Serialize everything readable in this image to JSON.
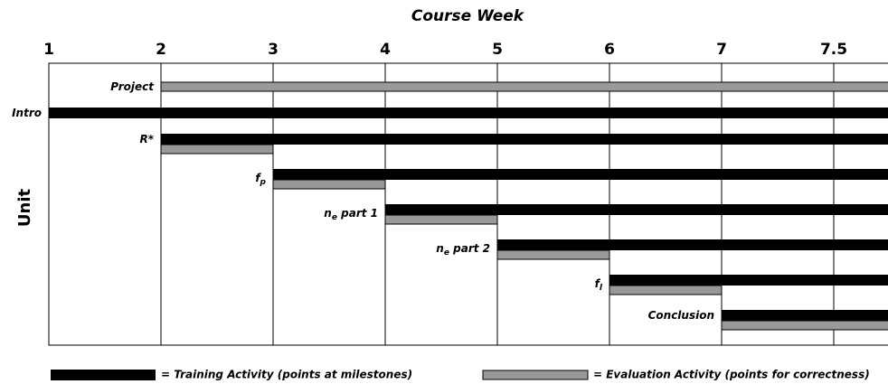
{
  "chart_data": {
    "type": "gantt",
    "title": "Course Week",
    "y_label": "Unit",
    "xticks": [
      1,
      2,
      3,
      4,
      5,
      6,
      7,
      7.5
    ],
    "grid": true,
    "training_color": "#000000",
    "evaluation_color": "#999999",
    "legend": {
      "training": "= Training Activity (points at milestones)",
      "evaluation": "= Evaluation Activity (points for correctness)"
    },
    "tasks": [
      {
        "label": "Project",
        "eval_start": 2
      },
      {
        "label": "Intro",
        "training_start": 1
      },
      {
        "label": "R*",
        "training_start": 2,
        "eval_start": 2,
        "eval_end": 3
      },
      {
        "label": "f",
        "label_sub": "p",
        "training_start": 3,
        "eval_start": 3,
        "eval_end": 4
      },
      {
        "label": "n",
        "label_sub": "e",
        "label_rest": " part 1",
        "training_start": 4,
        "eval_start": 4,
        "eval_end": 5
      },
      {
        "label": "n",
        "label_sub": "e",
        "label_rest": " part 2",
        "training_start": 5,
        "eval_start": 5,
        "eval_end": 6
      },
      {
        "label": "f",
        "label_sub": "l",
        "training_start": 6,
        "eval_start": 6,
        "eval_end": 7
      },
      {
        "label": "Conclusion",
        "training_start": 7,
        "eval_start": 7
      }
    ]
  }
}
